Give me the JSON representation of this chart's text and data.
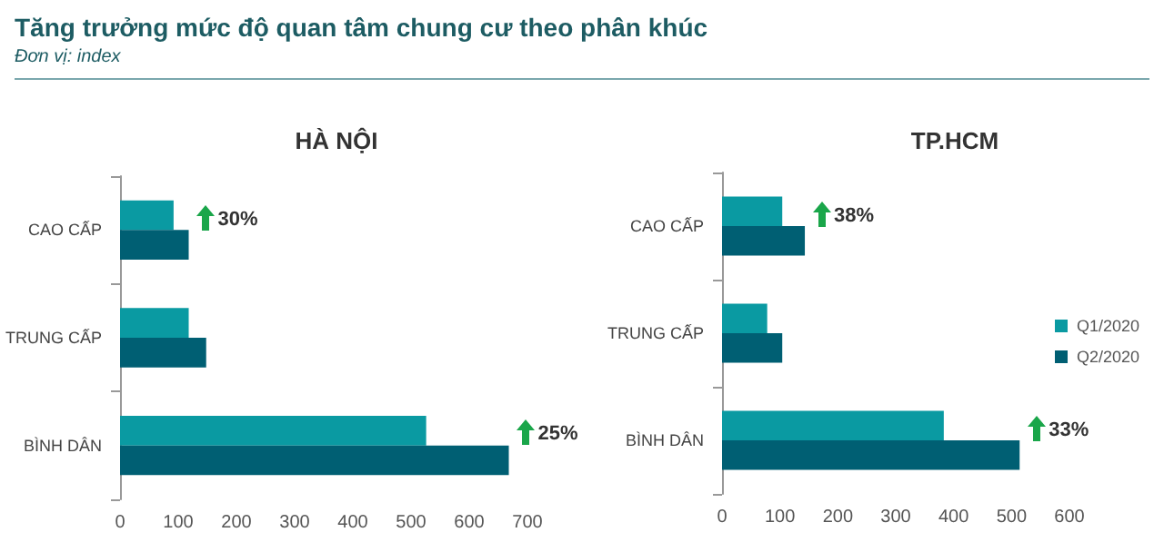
{
  "chart_data": [
    {
      "type": "other",
      "title": "Tăng trưởng mức độ quan tâm chung cư theo phân khúc",
      "subtitle": "Đơn vị: index"
    },
    {
      "type": "bar",
      "orientation": "horizontal",
      "title": "HÀ NỘI",
      "categories": [
        "CAO CẤP",
        "TRUNG CẤP",
        "BÌNH DÂN"
      ],
      "series": [
        {
          "color": "#0a9aa2",
          "values": [
            92,
            118,
            526
          ]
        },
        {
          "color": "#005f73",
          "values": [
            118,
            148,
            668
          ]
        }
      ],
      "xlim": [
        0,
        700
      ],
      "xticks": [
        0,
        100,
        200,
        300,
        400,
        500,
        600,
        700
      ],
      "grid": false,
      "legend": false,
      "annotations": [
        {
          "text": "30%",
          "x": 118,
          "y": "CAO CẤP"
        },
        {
          "text": "25%",
          "x": 668,
          "y": "BÌNH DÂN"
        }
      ]
    },
    {
      "type": "bar",
      "orientation": "horizontal",
      "title": "TP.HCM",
      "categories": [
        "CAO CẤP",
        "TRUNG CẤP",
        "BÌNH DÂN"
      ],
      "series": [
        {
          "name": "Q1/2020",
          "color": "#0a9aa2",
          "values": [
            104,
            78,
            383
          ]
        },
        {
          "name": "Q2/2020",
          "color": "#005f73",
          "values": [
            143,
            104,
            514
          ]
        }
      ],
      "xlim": [
        0,
        600
      ],
      "xticks": [
        0,
        100,
        200,
        300,
        400,
        500,
        600
      ],
      "grid": false,
      "legend": "right",
      "annotations": [
        {
          "text": "38%",
          "x": 143,
          "y": "CAO CẤP"
        },
        {
          "text": "33%",
          "x": 514,
          "y": "BÌNH DÂN"
        }
      ]
    }
  ]
}
